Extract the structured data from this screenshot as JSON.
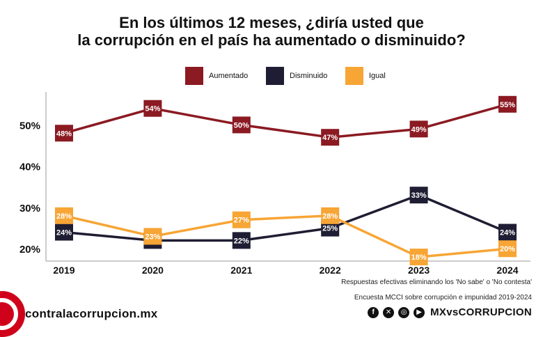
{
  "chart_data": {
    "type": "line",
    "title_lines": [
      "En los últimos 12 meses, ¿diría usted que",
      "la corrupción en el país ha aumentado o disminuido?"
    ],
    "x": [
      "2019",
      "2020",
      "2021",
      "2022",
      "2023",
      "2024"
    ],
    "yticks": [
      "20%",
      "30%",
      "40%",
      "50%"
    ],
    "ytick_values": [
      20,
      30,
      40,
      50
    ],
    "ylim": [
      17,
      58
    ],
    "grid": false,
    "legend_position": "top-center",
    "series": [
      {
        "name": "Aumentado",
        "color": "#8b1a22",
        "values": [
          48,
          54,
          50,
          47,
          49,
          55
        ],
        "labels": [
          "48%",
          "54%",
          "50%",
          "47%",
          "49%",
          "55%"
        ]
      },
      {
        "name": "Disminuido",
        "color": "#1e1d33",
        "values": [
          24,
          22,
          22,
          25,
          33,
          24
        ],
        "labels": [
          "24%",
          "22%",
          "22%",
          "25%",
          "33%",
          "24%"
        ]
      },
      {
        "name": "Igual",
        "color": "#f7a535",
        "values": [
          28,
          23,
          27,
          28,
          18,
          20
        ],
        "labels": [
          "28%",
          "23%",
          "27%",
          "28%",
          "18%",
          "20%"
        ]
      }
    ]
  },
  "footnotes": {
    "note1": "Respuestas efectivas eliminando los 'No sabe' o 'No contesta'",
    "note2": "Encuesta MCCI sobre corrupción e impunidad 2019-2024"
  },
  "branding": {
    "website": "contralacorrupcion.mx",
    "handle": "MXvsCORRUPCION",
    "brand_color": "#d0021b",
    "social_icons": [
      "facebook-icon",
      "x-icon",
      "instagram-icon",
      "youtube-icon"
    ]
  }
}
